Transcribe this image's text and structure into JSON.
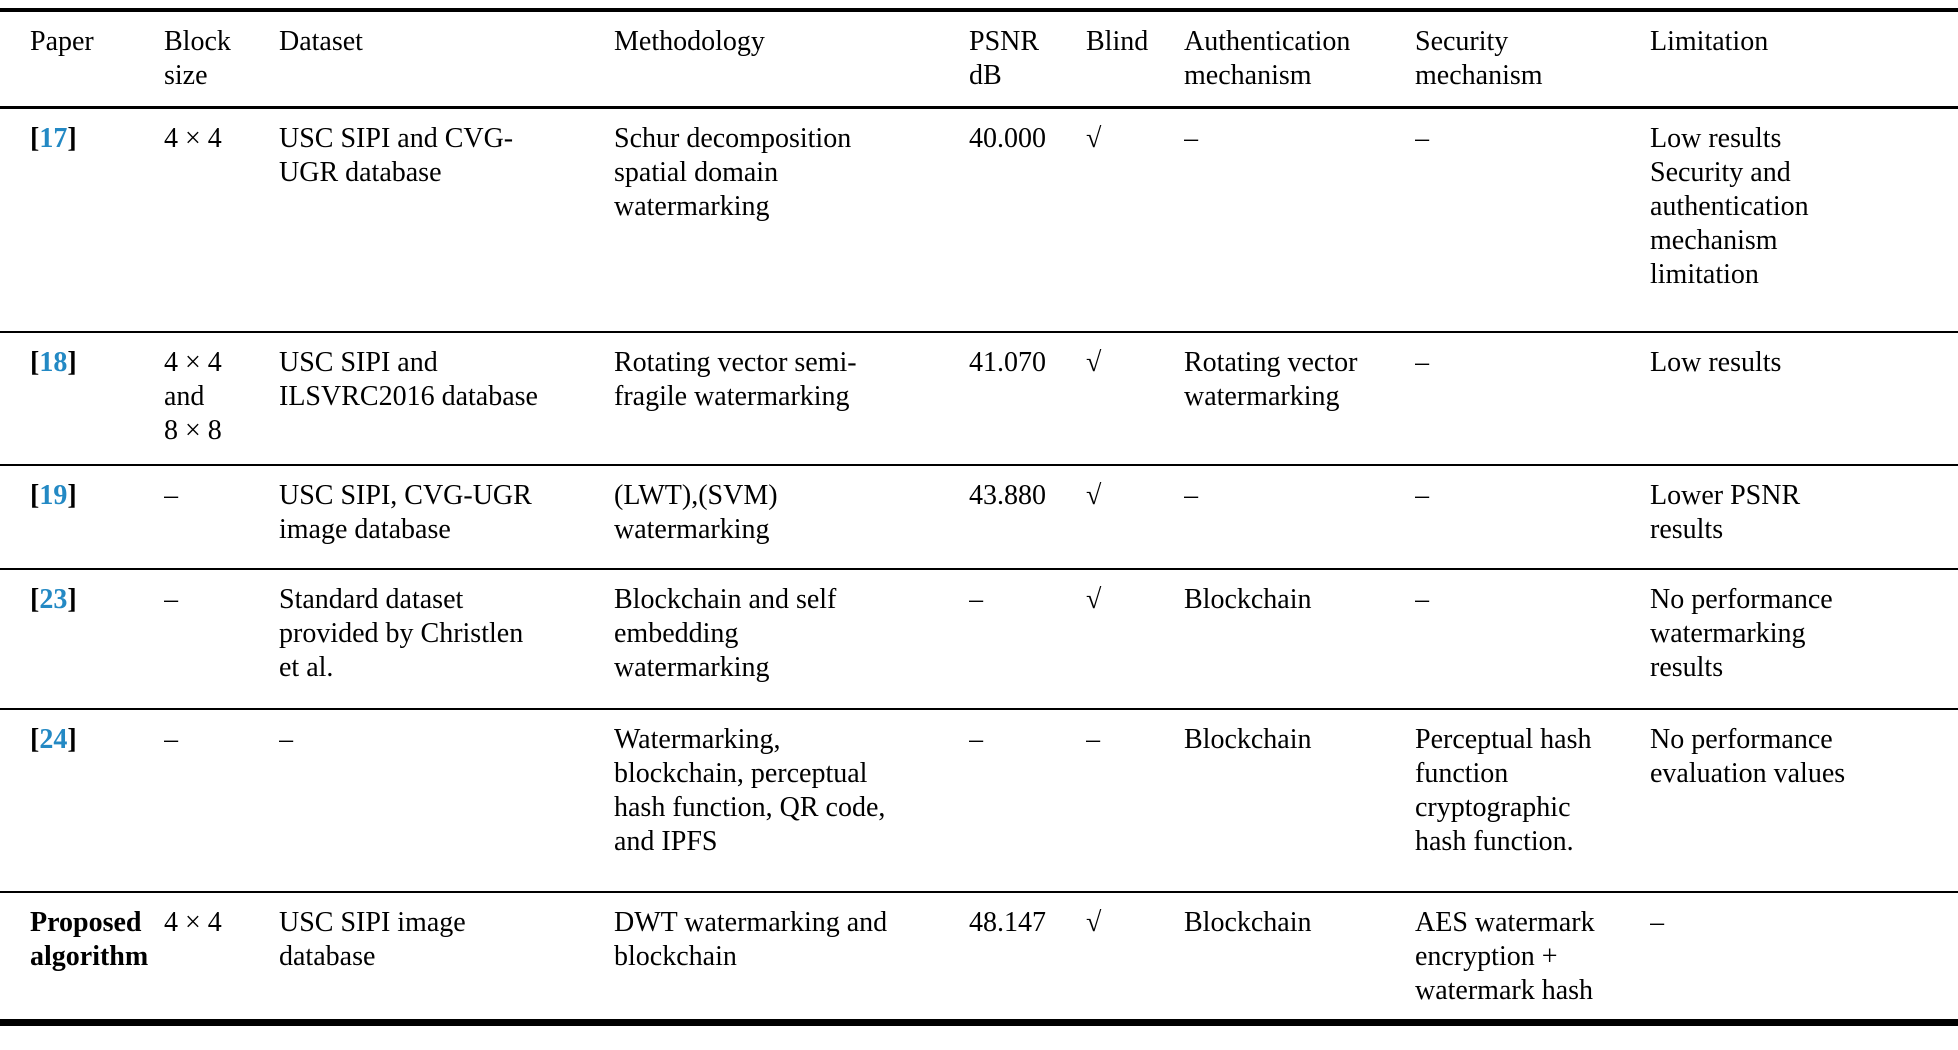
{
  "page": {
    "type": "academic-paper-comparison-table",
    "text_color": "#000000",
    "citation_color": "#2389c4",
    "background": "#ffffff"
  },
  "table": {
    "columns": [
      {
        "key": "paper",
        "label": "Paper"
      },
      {
        "key": "block_size",
        "label": "Block\nsize"
      },
      {
        "key": "dataset",
        "label": "Dataset"
      },
      {
        "key": "methodology",
        "label": "Methodology"
      },
      {
        "key": "psnr",
        "label": "PSNR\ndB"
      },
      {
        "key": "blind",
        "label": "Blind"
      },
      {
        "key": "auth",
        "label": "Authentication\nmechanism"
      },
      {
        "key": "security",
        "label": "Security\nmechanism"
      },
      {
        "key": "limitation",
        "label": "Limitation"
      }
    ],
    "check_glyph": "√",
    "empty_glyph": "–",
    "rows": [
      {
        "paper": {
          "citation": "17"
        },
        "block_size": "4 × 4",
        "dataset": "USC SIPI and CVG-\nUGR database",
        "methodology": "Schur decomposition\nspatial domain\nwatermarking",
        "psnr": "40.000",
        "blind": "√",
        "auth": "–",
        "security": "–",
        "limitation": "Low results\nSecurity and\nauthentication\nmechanism\nlimitation"
      },
      {
        "paper": {
          "citation": "18"
        },
        "block_size": "4 × 4\nand\n8 × 8",
        "dataset": "USC SIPI and\nILSVRC2016 database",
        "methodology": "Rotating vector semi-\nfragile watermarking",
        "psnr": "41.070",
        "blind": "√",
        "auth": "Rotating vector\nwatermarking",
        "security": "–",
        "limitation": "Low results"
      },
      {
        "paper": {
          "citation": "19"
        },
        "block_size": "–",
        "dataset": "USC SIPI, CVG-UGR\nimage database",
        "methodology": "(LWT),(SVM)\nwatermarking",
        "psnr": "43.880",
        "blind": "√",
        "auth": "–",
        "security": "–",
        "limitation": "Lower PSNR\nresults"
      },
      {
        "paper": {
          "citation": "23"
        },
        "block_size": "–",
        "dataset": "Standard dataset\nprovided by Christlen\net al.",
        "methodology": "Blockchain and self\nembedding\nwatermarking",
        "psnr": "–",
        "blind": "√",
        "auth": "Blockchain",
        "security": "–",
        "limitation": "No performance\nwatermarking\nresults"
      },
      {
        "paper": {
          "citation": "24"
        },
        "block_size": "–",
        "dataset": "–",
        "methodology": "Watermarking,\nblockchain, perceptual\nhash function, QR code,\nand IPFS",
        "psnr": "–",
        "blind": "–",
        "auth": "Blockchain",
        "security": "Perceptual hash\nfunction\ncryptographic\nhash function.",
        "limitation": "No performance\nevaluation values"
      },
      {
        "paper": {
          "text": "Proposed\nalgorithm",
          "bold": true
        },
        "block_size": "4 × 4",
        "dataset": "USC SIPI image\ndatabase",
        "methodology": "DWT watermarking and\nblockchain",
        "psnr": "48.147",
        "blind": "√",
        "auth": "Blockchain",
        "security": "AES watermark\nencryption +\nwatermark hash",
        "limitation": "–"
      }
    ]
  }
}
